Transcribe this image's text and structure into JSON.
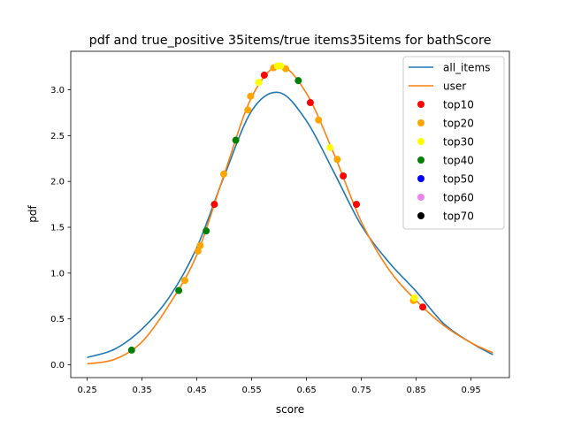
{
  "chart_data": {
    "type": "line",
    "title": "pdf and true_positive 35items/true items35items for bathScore",
    "xlabel": "score",
    "ylabel": "pdf",
    "xlim": [
      0.22,
      1.02
    ],
    "ylim": [
      -0.14,
      3.42
    ],
    "xticks": [
      "0.25",
      "0.35",
      "0.45",
      "0.55",
      "0.65",
      "0.75",
      "0.85",
      "0.95"
    ],
    "xtick_values": [
      0.25,
      0.35,
      0.45,
      0.55,
      0.65,
      0.75,
      0.85,
      0.95
    ],
    "yticks": [
      "0.0",
      "0.5",
      "1.0",
      "1.5",
      "2.0",
      "2.5",
      "3.0"
    ],
    "ytick_values": [
      0.0,
      0.5,
      1.0,
      1.5,
      2.0,
      2.5,
      3.0
    ],
    "grid": false,
    "legend_position": "top-right",
    "series": [
      {
        "name": "all_items",
        "kind": "line",
        "color": "#1f77b4",
        "x": [
          0.25,
          0.3,
          0.35,
          0.4,
          0.45,
          0.5,
          0.55,
          0.6,
          0.65,
          0.7,
          0.75,
          0.8,
          0.85,
          0.9,
          0.95,
          0.99
        ],
        "y": [
          0.08,
          0.17,
          0.39,
          0.74,
          1.28,
          2.06,
          2.77,
          2.97,
          2.66,
          2.1,
          1.52,
          1.12,
          0.8,
          0.45,
          0.24,
          0.11
        ]
      },
      {
        "name": "user",
        "kind": "line",
        "color": "#ff7f0e",
        "x": [
          0.25,
          0.3,
          0.35,
          0.4,
          0.45,
          0.5,
          0.55,
          0.6,
          0.65,
          0.7,
          0.75,
          0.8,
          0.85,
          0.9,
          0.95,
          0.99
        ],
        "y": [
          0.01,
          0.06,
          0.25,
          0.66,
          1.2,
          2.08,
          2.92,
          3.26,
          2.96,
          2.3,
          1.56,
          1.04,
          0.7,
          0.43,
          0.24,
          0.13
        ]
      },
      {
        "name": "top10",
        "kind": "scatter",
        "color": "#ff0000",
        "x": [
          0.482,
          0.573,
          0.657,
          0.717,
          0.741,
          0.862
        ],
        "y": [
          1.75,
          3.16,
          2.86,
          2.06,
          1.75,
          0.63
        ]
      },
      {
        "name": "top20",
        "kind": "scatter",
        "color": "#ffa500",
        "x": [
          0.428,
          0.452,
          0.456,
          0.499,
          0.543,
          0.548,
          0.59,
          0.612,
          0.672,
          0.706,
          0.845
        ],
        "y": [
          0.92,
          1.24,
          1.3,
          2.08,
          2.78,
          2.93,
          3.24,
          3.23,
          2.67,
          2.24,
          0.7
        ]
      },
      {
        "name": "top30",
        "kind": "scatter",
        "color": "#ffff00",
        "x": [
          0.563,
          0.597,
          0.603,
          0.693,
          0.847
        ],
        "y": [
          3.08,
          3.26,
          3.26,
          2.37,
          0.73
        ]
      },
      {
        "name": "top40",
        "kind": "scatter",
        "color": "#008000",
        "x": [
          0.331,
          0.417,
          0.467,
          0.521,
          0.635
        ],
        "y": [
          0.16,
          0.81,
          1.46,
          2.45,
          3.1
        ]
      },
      {
        "name": "top50",
        "kind": "scatter",
        "color": "#0000ff",
        "x": [],
        "y": []
      },
      {
        "name": "top60",
        "kind": "scatter",
        "color": "#ee82ee",
        "x": [],
        "y": []
      },
      {
        "name": "top70",
        "kind": "scatter",
        "color": "#000000",
        "x": [],
        "y": []
      }
    ]
  }
}
